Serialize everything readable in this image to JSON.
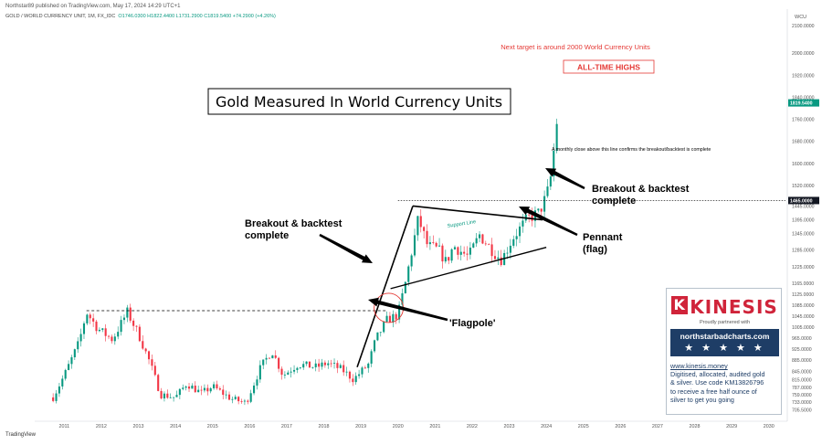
{
  "header": {
    "publisher": "Northstar89 published on TradingView.com, May 17, 2024 14:29 UTC+1",
    "symbol": "GOLD / WORLD CURRENCY UNIT, 1M, FX_IDC",
    "ohlc": "O1746.0300 H1822.4400 L1731.2900 C1819.5400 +74.2900 (+4.26%)",
    "footer_logo": "TradingView"
  },
  "chart_data": {
    "type": "candlestick",
    "title": "Gold Measured In World Currency Units",
    "unit_label": "WCU",
    "xlim": [
      2010.45,
      2030.45
    ],
    "ylim": [
      680,
      2160
    ],
    "x_ticks": [
      2011,
      2012,
      2013,
      2014,
      2015,
      2016,
      2017,
      2018,
      2019,
      2020,
      2021,
      2022,
      2023,
      2024,
      2025,
      2026,
      2027,
      2028,
      2029,
      2030
    ],
    "y_ticks": [
      "2100.0000",
      "2000.0000",
      "1920.0000",
      "1840.0000",
      "1760.0000",
      "1680.0000",
      "1600.0000",
      "1520.0000",
      "1445.0000",
      "1395.0000",
      "1345.0000",
      "1285.0000",
      "1225.0000",
      "1165.0000",
      "1125.0000",
      "1085.0000",
      "1045.0000",
      "1005.0000",
      "965.0000",
      "925.0000",
      "885.0000",
      "845.0000",
      "815.0000",
      "787.0000",
      "759.0000",
      "733.0000",
      "705.5000"
    ],
    "colors": {
      "up": "#089981",
      "down": "#f23645",
      "annotation": "#000000",
      "target_text": "#e53935"
    },
    "last_price": {
      "value": 1819.54,
      "label": "1819.5400",
      "color": "#089981"
    },
    "breakout_level": {
      "value": 1465,
      "label": "1465.0000"
    },
    "anchors": [
      [
        2010.7,
        750
      ],
      [
        2011.0,
        830
      ],
      [
        2011.4,
        950
      ],
      [
        2011.6,
        1060
      ],
      [
        2011.9,
        1000
      ],
      [
        2012.3,
        960
      ],
      [
        2012.7,
        1060
      ],
      [
        2013.0,
        980
      ],
      [
        2013.3,
        880
      ],
      [
        2013.6,
        760
      ],
      [
        2014.0,
        750
      ],
      [
        2014.3,
        800
      ],
      [
        2014.7,
        765
      ],
      [
        2015.0,
        790
      ],
      [
        2015.5,
        745
      ],
      [
        2015.9,
        730
      ],
      [
        2016.3,
        860
      ],
      [
        2016.6,
        920
      ],
      [
        2016.9,
        830
      ],
      [
        2017.3,
        870
      ],
      [
        2017.8,
        860
      ],
      [
        2018.1,
        875
      ],
      [
        2018.5,
        850
      ],
      [
        2018.8,
        815
      ],
      [
        2019.2,
        870
      ],
      [
        2019.4,
        960
      ],
      [
        2019.7,
        1030
      ],
      [
        2020.0,
        1050
      ],
      [
        2020.2,
        1165
      ],
      [
        2020.55,
        1400
      ],
      [
        2020.8,
        1300
      ],
      [
        2021.1,
        1285
      ],
      [
        2021.3,
        1240
      ],
      [
        2021.5,
        1300
      ],
      [
        2021.9,
        1260
      ],
      [
        2022.2,
        1340
      ],
      [
        2022.6,
        1275
      ],
      [
        2022.8,
        1250
      ],
      [
        2023.1,
        1330
      ],
      [
        2023.5,
        1400
      ],
      [
        2023.8,
        1420
      ],
      [
        2024.0,
        1480
      ],
      [
        2024.1,
        1530
      ],
      [
        2024.25,
        1700
      ],
      [
        2024.33,
        1820
      ]
    ],
    "annotations": {
      "target": "Next target is around 2000 World Currency Units",
      "ath": "ALL-TIME HIGHS",
      "monthly_close": "A monthly close above this line confirms the breakout/backtest is complete",
      "breakout_right": [
        "Breakout & backtest",
        "complete"
      ],
      "breakout_left": [
        "Breakout & backtest",
        "complete"
      ],
      "pennant": [
        "Pennant",
        "(flag)"
      ],
      "flagpole": "'Flagpole'",
      "support": "Support Line"
    }
  },
  "kinesis_box": {
    "brand": "KINESIS",
    "partner_text": "Proudly partnered with",
    "site": "northstarbadcharts.com",
    "stars": "★ ★ ★ ★ ★",
    "url": "www.kinesis.money",
    "line1": "Digitised, allocated, audited gold",
    "line2": "& silver. Use code KM13826796",
    "line3": "to receive a free half ounce of",
    "line4": "silver to get you going"
  }
}
